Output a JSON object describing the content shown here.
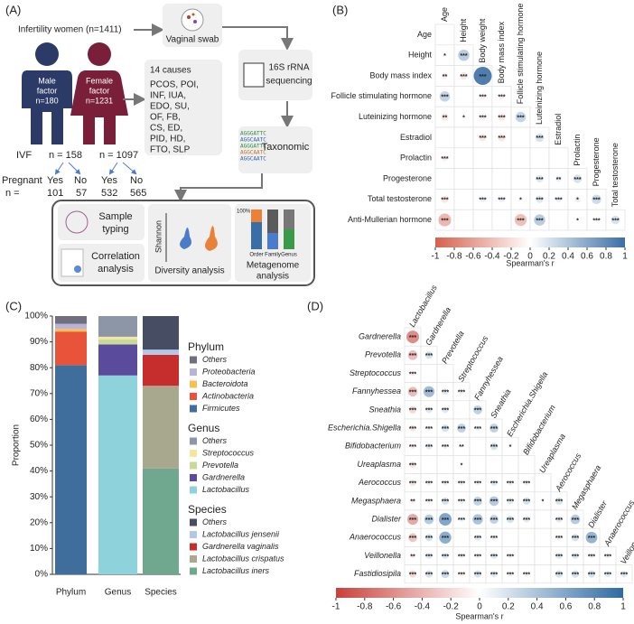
{
  "panel_labels": [
    "(A)",
    "(B)",
    "(C)",
    "(D)"
  ],
  "panel_a": {
    "population": "Infertility women (n=1411)",
    "swab": "Vaginal swab",
    "male": [
      "Male",
      "factor",
      "n=180"
    ],
    "female": [
      "Female",
      "factor",
      "n=1231"
    ],
    "causes_title": "14 causes",
    "causes": [
      "PCOS, POI,",
      "INF, IUA,",
      "EDO, SU,",
      "OF, FB,",
      "CS, ED,",
      "PID, HD,",
      "FTO, SLP"
    ],
    "sequencing": [
      "16S rRNA",
      "sequencing"
    ],
    "sequences": [
      "AGGGATTC",
      "AGGCAATC",
      "AGGGATTC",
      "AGGCAATC",
      "AGGCAATC"
    ],
    "taxonomic": "Taxonomic",
    "ivf": "IVF",
    "ivf_n": [
      "n = 158",
      "n = 1097"
    ],
    "pregnant": "Pregnant",
    "answers": [
      "Yes",
      "No",
      "Yes",
      "No"
    ],
    "n_label": "n =",
    "counts": [
      101,
      57,
      532,
      565
    ],
    "analyses": {
      "sample": [
        "Sample",
        "typing"
      ],
      "correlation": [
        "Correlation",
        "analysis"
      ],
      "diversity": "Diversity analysis",
      "metagenome": [
        "Metagenome",
        "analysis"
      ],
      "shannon": "Shannon",
      "levels": [
        "Order",
        "Family",
        "Genus"
      ],
      "percent": "100%"
    }
  },
  "chart_data": [
    {
      "type": "correlation",
      "rows": [
        "Age",
        "Height",
        "Body mass index",
        "Follicle stimulating hormone",
        "Luteinizing hormone",
        "Estradiol",
        "Prolactin",
        "Progesterone",
        "Total testosterone",
        "Anti-Mullerian hormone"
      ],
      "columns": [
        "Age",
        "Height",
        "Body weight",
        "Body mass index",
        "Follicle stimulating hormone",
        "Luteinizing hormone",
        "Estradiol",
        "Prolactin",
        "Progesterone",
        "Total testosterone"
      ],
      "values": [
        [
          0
        ],
        [
          -0.05,
          0.35
        ],
        [
          -0.1,
          -0.15,
          0.9
        ],
        [
          0.3,
          0,
          -0.1,
          -0.1
        ],
        [
          -0.15,
          -0.05,
          -0.1,
          -0.15,
          0.3
        ],
        [
          0,
          0,
          -0.15,
          -0.15,
          0,
          0.2
        ],
        [
          -0.1,
          0,
          0,
          0,
          0,
          0,
          0
        ],
        [
          0,
          0,
          0,
          0,
          0,
          0.15,
          0.1,
          0.2
        ],
        [
          -0.15,
          0,
          0.1,
          0.1,
          0.05,
          0.15,
          0.1,
          0.1,
          0.25
        ],
        [
          -0.45,
          0,
          0,
          0,
          -0.4,
          0.35,
          0,
          0.02,
          0.05,
          0.2
        ]
      ],
      "stars": [
        [
          null
        ],
        [
          "*",
          "***"
        ],
        [
          "**",
          "***",
          "***"
        ],
        [
          "***",
          null,
          "***",
          "***"
        ],
        [
          "**",
          "*",
          "***",
          "***",
          "***"
        ],
        [
          null,
          null,
          "***",
          "***",
          null,
          "***"
        ],
        [
          "***",
          null,
          null,
          null,
          null,
          null,
          null
        ],
        [
          null,
          null,
          null,
          null,
          null,
          "***",
          "**",
          "***"
        ],
        [
          "***",
          null,
          "***",
          "***",
          "*",
          "***",
          "***",
          "*",
          "***"
        ],
        [
          "***",
          null,
          null,
          null,
          "***",
          "***",
          null,
          "*",
          "***",
          "***"
        ]
      ],
      "neg_color": "#d6604d",
      "pos_color": "#3a6ea5",
      "colorbar_label": "Spearman's r",
      "clim": [
        -1,
        1
      ],
      "cticks": [
        -1,
        -0.8,
        -0.6,
        -0.4,
        -0.2,
        0,
        0.2,
        0.4,
        0.6,
        0.8,
        1
      ]
    },
    {
      "type": "stacked_bar",
      "categories": [
        "Phylum",
        "Genus",
        "Species"
      ],
      "ylabel": "Proportion",
      "ylim": [
        0,
        100
      ],
      "yticks": [
        {
          "value": 0,
          "label": "0%"
        },
        {
          "value": 10,
          "label": "10%"
        },
        {
          "value": 20,
          "label": "20%"
        },
        {
          "value": 30,
          "label": "30%"
        },
        {
          "value": 40,
          "label": "40%"
        },
        {
          "value": 50,
          "label": "50%"
        },
        {
          "value": 60,
          "label": "60%"
        },
        {
          "value": 70,
          "label": "70%"
        },
        {
          "value": 80,
          "label": "80%"
        },
        {
          "value": 90,
          "label": "90%"
        },
        {
          "value": 100,
          "label": "100%"
        }
      ],
      "legend_titles": [
        "Phylum",
        "Genus",
        "Species"
      ],
      "series": [
        {
          "name": "Firmicutes",
          "color": "#3f6e9c",
          "values": [
            81,
            null,
            null
          ]
        },
        {
          "name": "Actinobacteria",
          "color": "#e8533a",
          "values": [
            13,
            null,
            null
          ]
        },
        {
          "name": "Bacteroidota",
          "color": "#f2c14e",
          "values": [
            1,
            null,
            null
          ]
        },
        {
          "name": "Proteobacteria",
          "color": "#b9b3d8",
          "values": [
            2,
            null,
            null
          ]
        },
        {
          "name": "Others",
          "color": "#6f6f80",
          "values": [
            3,
            null,
            null
          ]
        },
        {
          "name": "Lactobacillus",
          "color": "#8ed3dc",
          "values": [
            null,
            77,
            null
          ]
        },
        {
          "name": "Gardnerella",
          "color": "#5a4b9c",
          "values": [
            null,
            12,
            null
          ]
        },
        {
          "name": "Prevotella",
          "color": "#c9d99a",
          "values": [
            null,
            2,
            null
          ]
        },
        {
          "name": "Streptococcus",
          "color": "#f3e6a0",
          "values": [
            null,
            1,
            null
          ]
        },
        {
          "name": "Others",
          "color": "#8c96a6",
          "values": [
            null,
            8,
            null
          ]
        },
        {
          "name": "Lactobacillus iners",
          "color": "#6fa88f",
          "values": [
            null,
            null,
            41
          ]
        },
        {
          "name": "Lactobacillus crispatus",
          "color": "#a8a88f",
          "values": [
            null,
            null,
            32
          ]
        },
        {
          "name": "Gardnerella vaginalis",
          "color": "#c62d2d",
          "values": [
            null,
            null,
            12
          ]
        },
        {
          "name": "Lactobacillus jensenii",
          "color": "#b3c7e8",
          "values": [
            null,
            null,
            2
          ]
        },
        {
          "name": "Others",
          "color": "#474d63",
          "values": [
            null,
            null,
            13
          ]
        }
      ]
    },
    {
      "type": "correlation",
      "italic_labels": true,
      "rows": [
        "Gardnerella",
        "Prevotella",
        "Streptococcus",
        "Fannyhessea",
        "Sneathia",
        "Escherichia.Shigella",
        "Bifidobacterium",
        "Ureaplasma",
        "Aerococcus",
        "Megasphaera",
        "Dialister",
        "Anaerococcus",
        "Veillonella",
        "Fastidiosipila"
      ],
      "columns": [
        "Lactobacillus",
        "Gardnerella",
        "Prevotella",
        "Streptococcus",
        "Fannyhessea",
        "Sneathia",
        "Escherichia.Shigella",
        "Bifidobacterium",
        "Ureaplasma",
        "Aerococcus",
        "Megasphaera",
        "Dialister",
        "Anaerococcus",
        "Veillonella"
      ],
      "values": [
        [
          -0.6
        ],
        [
          -0.35,
          0.2
        ],
        [
          -0.1,
          0,
          0
        ],
        [
          -0.35,
          0.45,
          0.15,
          0.1
        ],
        [
          -0.2,
          0.15,
          0.15,
          0,
          0.3
        ],
        [
          -0.15,
          0.1,
          0.2,
          0.3,
          0.1,
          0.3
        ],
        [
          -0.1,
          0.15,
          0.1,
          0.05,
          0,
          0.2,
          0.05
        ],
        [
          -0.15,
          0,
          0,
          0.02,
          0,
          0,
          0,
          0
        ],
        [
          -0.15,
          0.1,
          0.1,
          0.1,
          0.1,
          0.15,
          0.1,
          0.1,
          0
        ],
        [
          -0.1,
          0.1,
          0.2,
          0.1,
          0.3,
          0.35,
          0.15,
          0.2,
          0.02,
          0.2
        ],
        [
          -0.45,
          0.35,
          0.6,
          0.1,
          0.4,
          0.3,
          0.2,
          0.15,
          0,
          0.15,
          0.35
        ],
        [
          -0.3,
          0.2,
          0.55,
          0,
          0.15,
          0.1,
          0,
          0,
          0,
          0.1,
          0.2,
          0.5
        ],
        [
          -0.1,
          0.15,
          0.15,
          0.1,
          0.1,
          0.15,
          0.1,
          0,
          0,
          0.15,
          0.15,
          0.1,
          0.1
        ],
        [
          -0.2,
          0.2,
          0.25,
          -0.1,
          0.2,
          0.15,
          0.1,
          0.1,
          0,
          0.2,
          0.2,
          0.2,
          0.15,
          0.15
        ]
      ],
      "stars": [
        [
          "***"
        ],
        [
          "***",
          "***"
        ],
        [
          "***",
          null,
          null
        ],
        [
          "***",
          "***",
          "***",
          "***"
        ],
        [
          "***",
          "***",
          "***",
          null,
          "***"
        ],
        [
          "***",
          "***",
          "***",
          "***",
          "***",
          "***"
        ],
        [
          "***",
          "***",
          "***",
          "**",
          null,
          "***",
          "*"
        ],
        [
          "***",
          null,
          null,
          "*",
          null,
          null,
          null,
          null
        ],
        [
          "***",
          "***",
          "***",
          "***",
          "***",
          "***",
          "***",
          "***",
          null
        ],
        [
          "**",
          "***",
          "***",
          "***",
          "***",
          "***",
          "***",
          "***",
          "*",
          "***"
        ],
        [
          "***",
          "***",
          "***",
          "***",
          "***",
          "***",
          "***",
          "***",
          null,
          "***",
          "***"
        ],
        [
          "***",
          "***",
          "***",
          null,
          "***",
          "***",
          null,
          null,
          null,
          "***",
          "***",
          "***"
        ],
        [
          "**",
          "***",
          "***",
          "***",
          "***",
          "***",
          "***",
          null,
          null,
          "***",
          "***",
          "***",
          "***"
        ],
        [
          "***",
          "***",
          "***",
          "***",
          "***",
          "***",
          "***",
          "***",
          null,
          "***",
          "***",
          "***",
          "***",
          "***"
        ]
      ],
      "neg_color": "#c8413a",
      "pos_color": "#2f69a3",
      "colorbar_label": "Spearman's r",
      "clim": [
        -1,
        1
      ],
      "cticks": [
        -1,
        -0.8,
        -0.6,
        -0.4,
        -0.2,
        0,
        0.2,
        0.4,
        0.6,
        0.8,
        1
      ]
    }
  ]
}
